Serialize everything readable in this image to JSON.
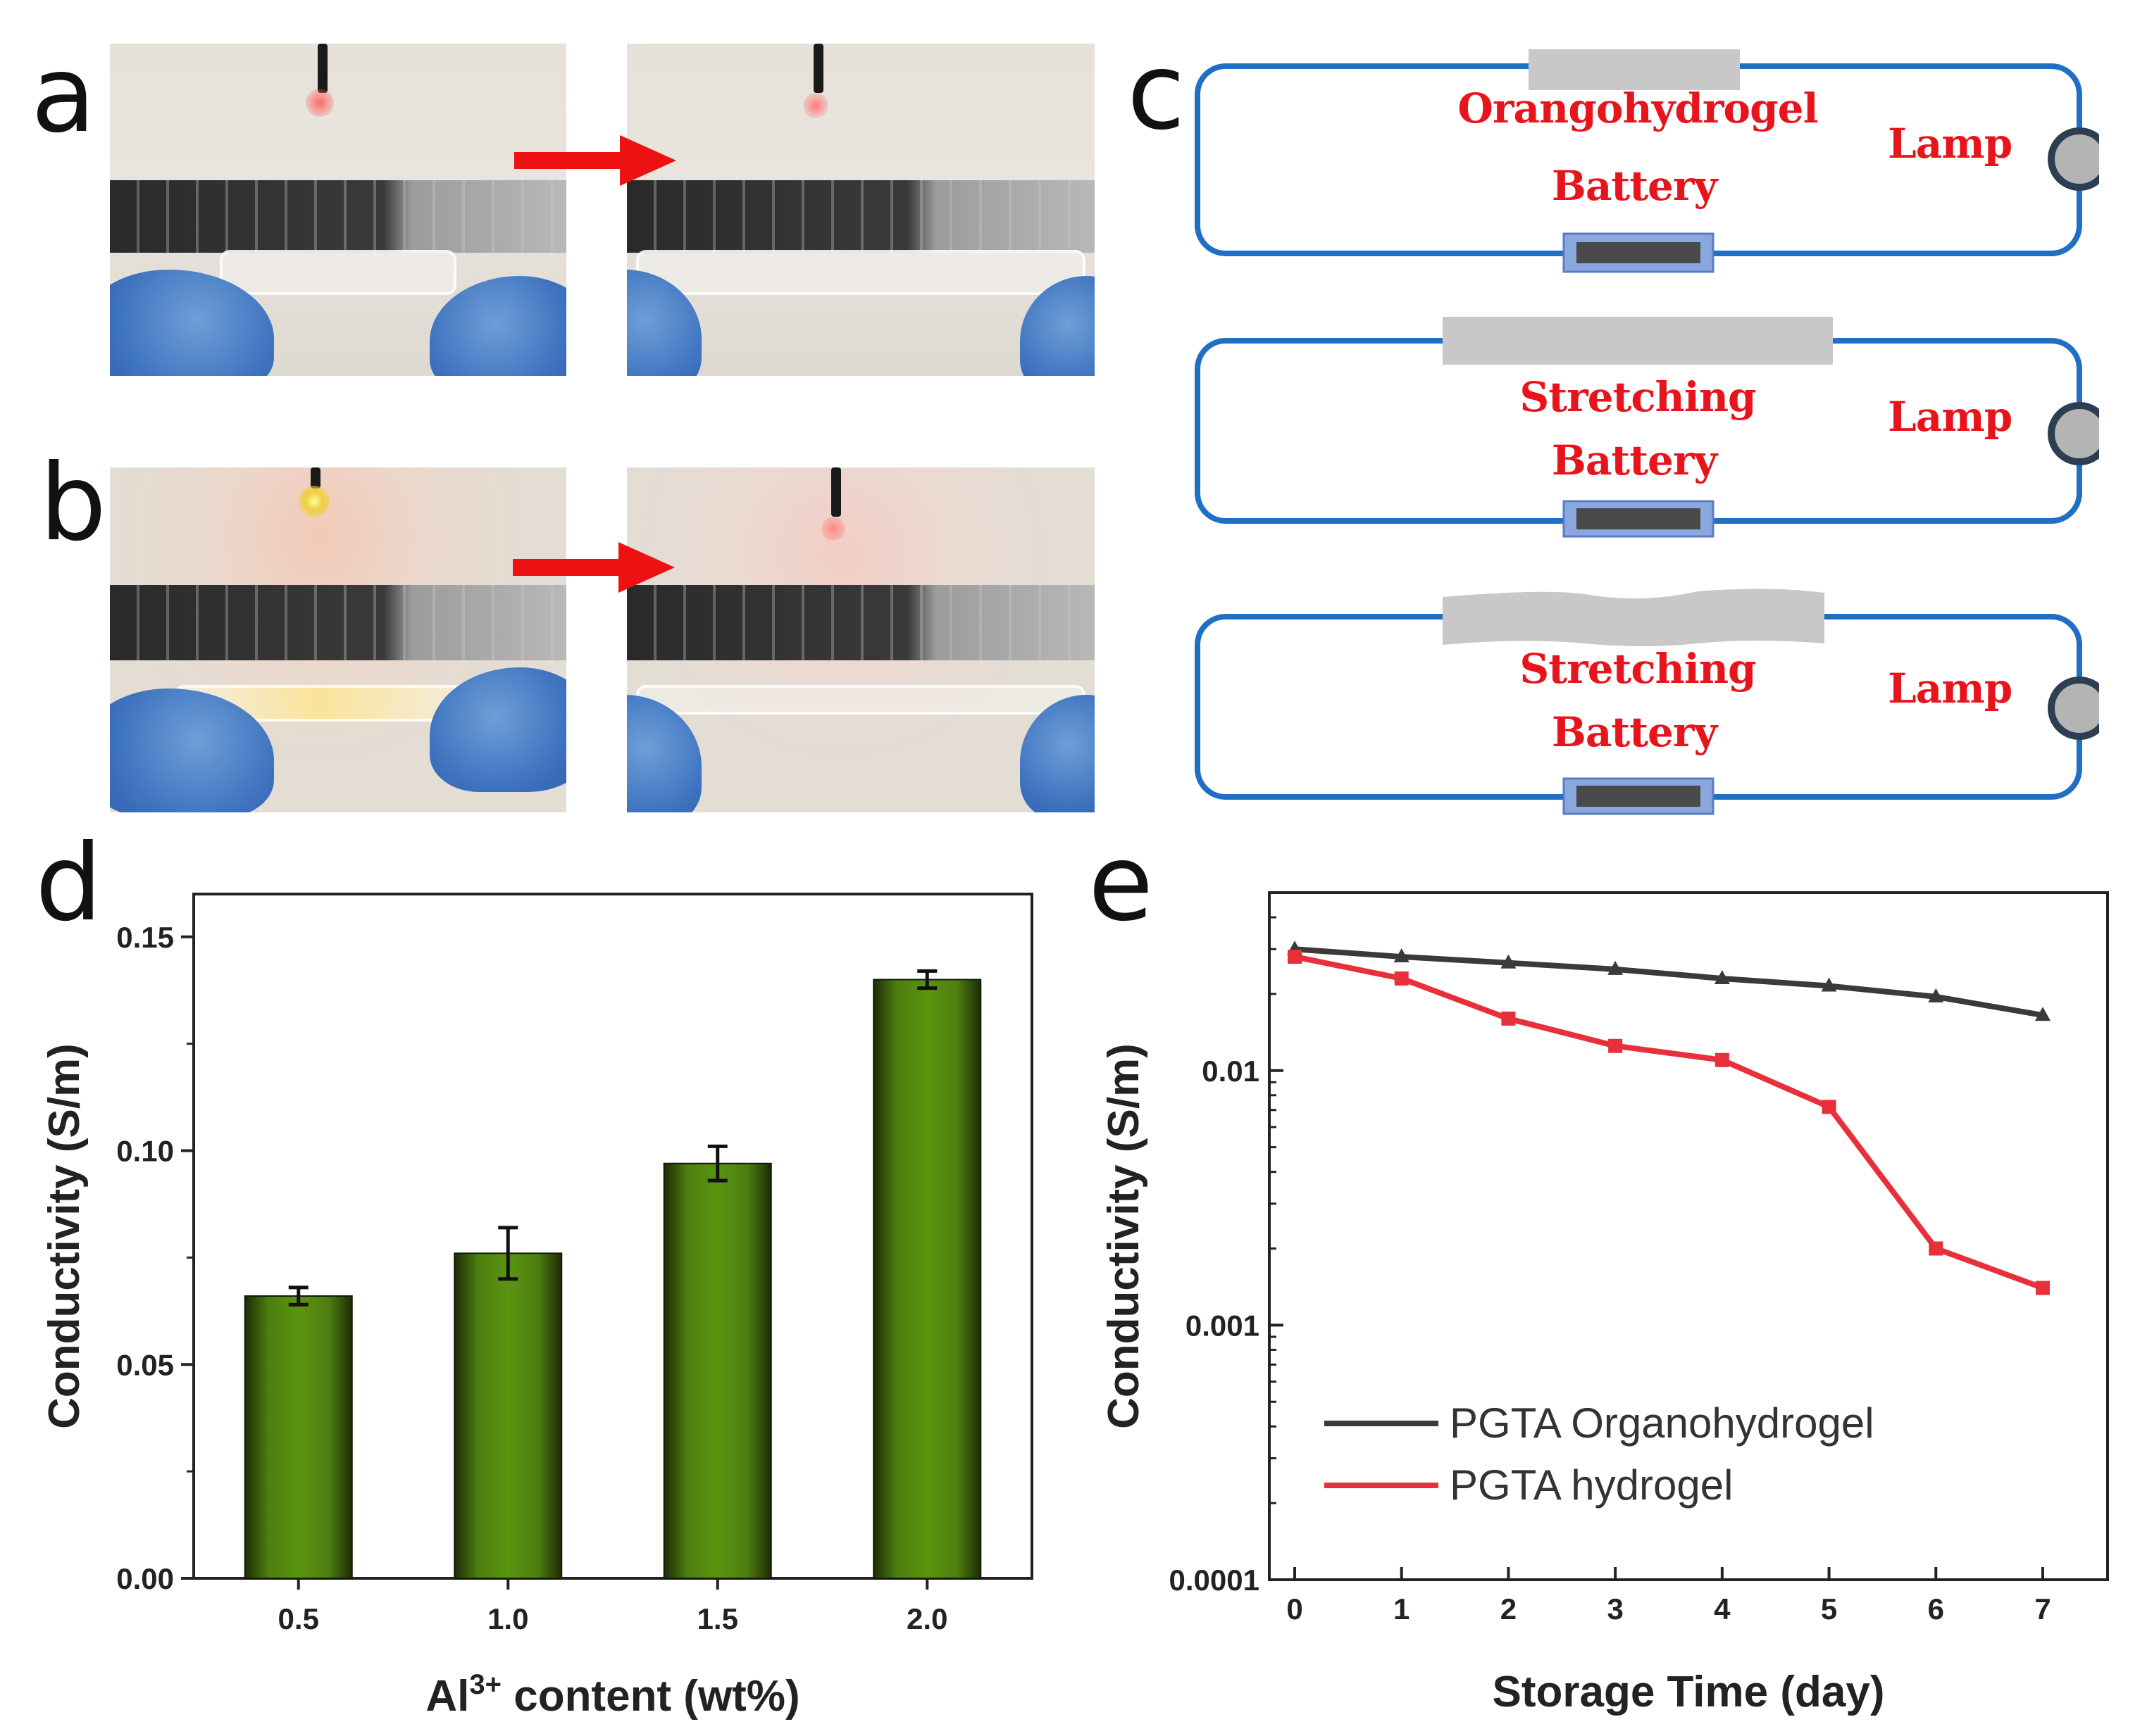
{
  "panel_labels": {
    "a": "a",
    "b": "b",
    "c": "c",
    "d": "d",
    "e": "e"
  },
  "photos": {
    "a_before": "LED lit, gel held between gloved hands",
    "a_after": "LED dimmer after stretching",
    "b_before": "Bright LED lit, gel held between gloved hands",
    "b_after": "LED dimmer after stretching"
  },
  "circuits": [
    {
      "gel_label": "Orangohydrogel",
      "battery_label": "Battery",
      "lamp_label": "Lamp"
    },
    {
      "gel_label": "Stretching",
      "battery_label": "Battery",
      "lamp_label": "Lamp"
    },
    {
      "gel_label": "Stretching",
      "battery_label": "Battery",
      "lamp_label": "Lamp"
    }
  ],
  "colors": {
    "wire": "#1f6fc4",
    "label_red": "#e8141c",
    "gel_gray": "#c8c8c8",
    "lamp_gray": "#b4b4b4",
    "bar_green": "#5a9410",
    "series_black": "#3a3a3a",
    "series_red": "#e8303a"
  },
  "chart_data": [
    {
      "id": "d",
      "type": "bar",
      "title": "",
      "xlabel_main": "Al",
      "xlabel_sup": "3+",
      "xlabel_rest": " content (wt%)",
      "ylabel": "Conductivity   (S/m)",
      "categories": [
        "0.5",
        "1.0",
        "1.5",
        "2.0"
      ],
      "values": [
        0.066,
        0.076,
        0.097,
        0.14
      ],
      "errors": [
        0.002,
        0.006,
        0.004,
        0.002
      ],
      "ylim": [
        0.0,
        0.16
      ],
      "yticks": [
        0.0,
        0.05,
        0.1,
        0.15
      ],
      "ytick_labels": [
        "0.00",
        "0.05",
        "0.10",
        "0.15"
      ]
    },
    {
      "id": "e",
      "type": "line",
      "yscale": "log",
      "title": "",
      "xlabel": "Storage Time   (day)",
      "ylabel": "Conductivity   (S/m)",
      "x": [
        0,
        1,
        2,
        3,
        4,
        5,
        6,
        7
      ],
      "xticks": [
        "0",
        "1",
        "2",
        "3",
        "4",
        "5",
        "6",
        "7"
      ],
      "ylim": [
        0.0001,
        0.05
      ],
      "yticks": [
        0.0001,
        0.001,
        0.01
      ],
      "ytick_labels": [
        "0.0001",
        "0.001",
        "0.01"
      ],
      "series": [
        {
          "name": "PGTA Organohydrogel",
          "marker": "triangle",
          "values": [
            0.03,
            0.028,
            0.0265,
            0.025,
            0.023,
            0.0215,
            0.0195,
            0.0165
          ]
        },
        {
          "name": "PGTA hydrogel",
          "marker": "square",
          "values": [
            0.028,
            0.023,
            0.016,
            0.0125,
            0.011,
            0.0072,
            0.002,
            0.0014
          ]
        }
      ],
      "legend_position": "bottom-left"
    }
  ]
}
